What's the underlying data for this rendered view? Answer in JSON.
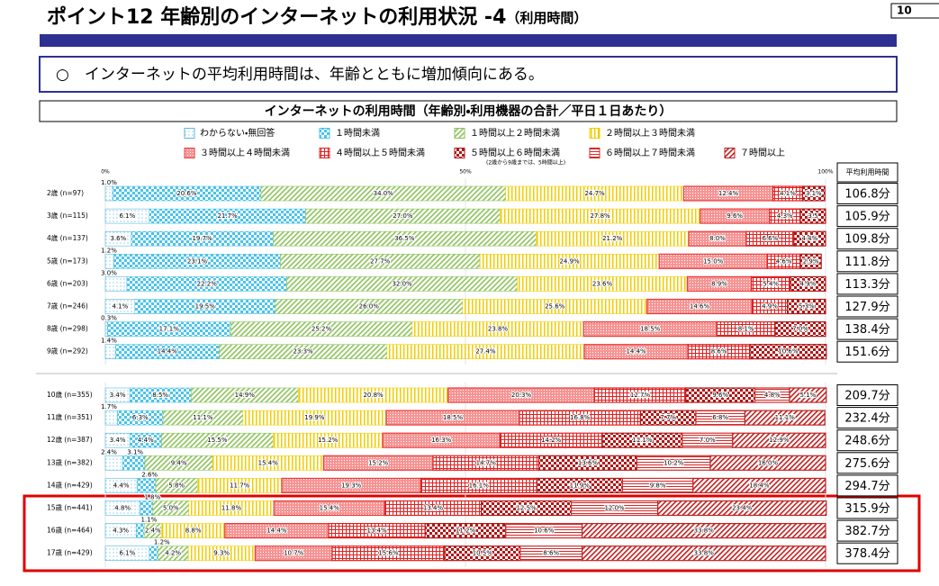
{
  "header": {
    "title": "ポイント12 年齢別のインターネットの利用状況 -4",
    "title_sub": "（利用時間）",
    "page_number": "10"
  },
  "summary": "○　インターネットの平均利用時間は、年齢とともに増加傾向にある。",
  "chart_data": {
    "type": "stacked-barh",
    "title": "インターネットの利用時間（年齢別・利用機器の合計／平日１日あたり）",
    "legend_note": "(2歳から9歳までは、5時間以上)",
    "xlim": [
      0,
      100
    ],
    "xticks": [
      {
        "value": 0,
        "label": "0%"
      },
      {
        "value": 50,
        "label": "50%"
      },
      {
        "value": 100,
        "label": "100%"
      }
    ],
    "categories": [
      "2歳 (n=97)",
      "3歳 (n=115)",
      "4歳 (n=137)",
      "5歳 (n=173)",
      "6歳 (n=203)",
      "7歳 (n=246)",
      "8歳 (n=298)",
      "9歳 (n=292)",
      "10歳 (n=355)",
      "11歳 (n=351)",
      "12歳 (n=387)",
      "13歳 (n=382)",
      "14歳 (n=429)",
      "15歳 (n=441)",
      "16歳 (n=464)",
      "17歳 (n=429)"
    ],
    "series": [
      {
        "name": "わからない・無回答",
        "color": "#5bb8e0",
        "pattern": "dots",
        "values": [
          1.0,
          6.1,
          3.6,
          1.2,
          3.0,
          4.1,
          0.3,
          1.4,
          3.4,
          1.7,
          3.4,
          2.4,
          4.4,
          4.8,
          4.3,
          6.1
        ],
        "value_labels": [
          "1.0%",
          "6.1%",
          "3.6%",
          "1.2%",
          "3.0%",
          "4.1%",
          "0.3%",
          "1.4%",
          "3.4%",
          "1.7%",
          "3.4%",
          "2.4%",
          "4.4%",
          "4.8%",
          "4.3%",
          "6.1%"
        ]
      },
      {
        "name": "１時間未満",
        "color": "#4cc3ea",
        "pattern": "checker",
        "values": [
          20.6,
          21.7,
          19.7,
          23.1,
          22.2,
          19.5,
          17.1,
          14.4,
          8.5,
          6.3,
          4.4,
          3.1,
          2.6,
          1.8,
          1.1,
          1.2
        ],
        "value_labels": [
          "20.6%",
          "21.7%",
          "19.7%",
          "23.1%",
          "22.2%",
          "19.5%",
          "17.1%",
          "14.4%",
          "8.5%",
          "6.3%",
          "4.4%",
          "3.1%",
          "2.6%",
          "1.8%",
          "1.1%",
          "1.2%"
        ]
      },
      {
        "name": "１時間以上２時間未満",
        "color": "#8cc35a",
        "pattern": "diagonal",
        "values": [
          34.0,
          27.0,
          36.5,
          27.7,
          32.0,
          26.0,
          25.2,
          23.3,
          14.9,
          11.1,
          15.5,
          9.4,
          5.8,
          5.0,
          2.4,
          4.2
        ],
        "value_labels": [
          "34.0%",
          "27.0%",
          "36.5%",
          "27.7%",
          "32.0%",
          "26.0%",
          "25.2%",
          "23.3%",
          "14.9%",
          "11.1%",
          "15.5%",
          "9.4%",
          "5.8%",
          "5.0%",
          "2.4%",
          "4.2%"
        ]
      },
      {
        "name": "２時間以上３時間未満",
        "color": "#f2cc00",
        "pattern": "vstripes",
        "values": [
          24.7,
          27.8,
          21.2,
          24.9,
          23.6,
          25.6,
          23.8,
          27.4,
          20.8,
          19.9,
          15.2,
          15.4,
          11.7,
          11.8,
          8.8,
          9.3
        ],
        "value_labels": [
          "24.7%",
          "27.8%",
          "21.2%",
          "24.9%",
          "23.6%",
          "25.6%",
          "23.8%",
          "27.4%",
          "20.8%",
          "19.9%",
          "15.2%",
          "15.4%",
          "11.7%",
          "11.8%",
          "8.8%",
          "9.3%"
        ]
      },
      {
        "name": "３時間以上４時間未満",
        "color": "#ee3b3b",
        "pattern": "dense-dots",
        "values": [
          12.4,
          9.6,
          8.0,
          15.0,
          8.9,
          14.6,
          18.5,
          14.4,
          20.3,
          18.5,
          16.3,
          15.2,
          19.3,
          15.4,
          14.4,
          10.7
        ],
        "value_labels": [
          "12.4%",
          "9.6%",
          "8.0%",
          "15.0%",
          "8.9%",
          "14.6%",
          "18.5%",
          "14.4%",
          "20.3%",
          "18.5%",
          "16.3%",
          "15.2%",
          "19.3%",
          "15.4%",
          "14.4%",
          "10.7%"
        ]
      },
      {
        "name": "４時間以上５時間未満",
        "color": "#e02020",
        "pattern": "grid",
        "values": [
          4.1,
          4.3,
          6.6,
          4.6,
          5.4,
          4.9,
          8.1,
          8.6,
          12.7,
          16.8,
          14.2,
          14.7,
          16.1,
          13.4,
          13.4,
          15.6
        ],
        "value_labels": [
          "4.1%",
          "4.3%",
          "6.6%",
          "4.6%",
          "5.4%",
          "4.9%",
          "8.1%",
          "8.6%",
          "12.7%",
          "16.8%",
          "14.2%",
          "14.7%",
          "16.1%",
          "13.4%",
          "13.4%",
          "15.6%"
        ]
      },
      {
        "name": "５時間以上６時間未満",
        "color": "#b01818",
        "pattern": "checker",
        "values": [
          3.1,
          3.5,
          4.4,
          2.9,
          4.9,
          5.3,
          7.0,
          10.6,
          9.6,
          7.7,
          11.1,
          13.6,
          11.9,
          12.5,
          11.2,
          10.5
        ],
        "value_labels": [
          "3.1%",
          "3.5",
          "4.4%",
          "2.9%",
          "4.9%",
          "5.3%",
          "7.0%",
          "10.6%",
          "9.6%",
          "7.7%",
          "11.1%",
          "13.6%",
          "11.9%",
          "12.5%",
          "11.2%",
          "10.5%"
        ]
      },
      {
        "name": "６時間以上７時間未満",
        "color": "#d42a2a",
        "pattern": "hstripes",
        "values": [
          null,
          null,
          null,
          null,
          null,
          null,
          null,
          null,
          4.8,
          6.8,
          7.0,
          10.2,
          9.8,
          12.0,
          10.6,
          8.6
        ],
        "value_labels": [
          null,
          null,
          null,
          null,
          null,
          null,
          null,
          null,
          "4.8%",
          "6.8%",
          "7.0%",
          "10.2%",
          "9.8%",
          "12.0%",
          "10.6%",
          "8.6%"
        ]
      },
      {
        "name": "７時間以上",
        "color": "#c02020",
        "pattern": "diagonal",
        "values": [
          null,
          null,
          null,
          null,
          null,
          null,
          null,
          null,
          5.1,
          11.1,
          12.9,
          16.0,
          18.4,
          23.4,
          33.8,
          33.8
        ],
        "value_labels": [
          null,
          null,
          null,
          null,
          null,
          null,
          null,
          null,
          "5.1%",
          "11.1%",
          "12.9%",
          "16.0%",
          "18.4%",
          "23.4%",
          "33.8%",
          "33.8%"
        ]
      }
    ],
    "average_header": "平均利用時間",
    "average_labels": [
      "106.8分",
      "105.9分",
      "109.8分",
      "111.8分",
      "113.3分",
      "127.9分",
      "138.4分",
      "151.6分",
      "209.7分",
      "232.4分",
      "248.6分",
      "275.6分",
      "294.7分",
      "315.9分",
      "382.7分",
      "378.4分"
    ]
  }
}
